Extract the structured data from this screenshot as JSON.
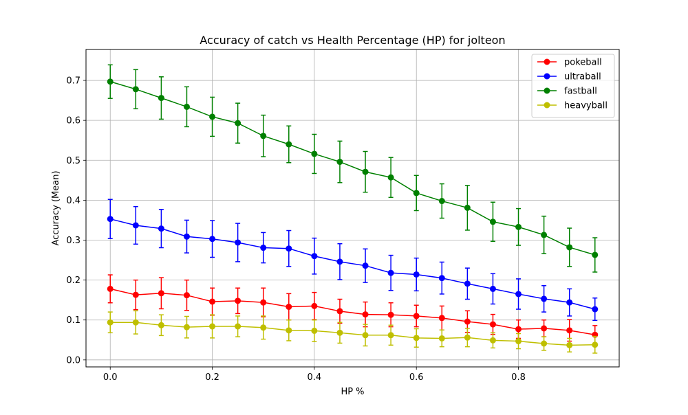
{
  "chart_data": {
    "type": "line",
    "title": "Accuracy of catch vs Health Percentage (HP) for jolteon",
    "xlabel": "HP %",
    "ylabel": "Accuracy (Mean)",
    "xlim": [
      -0.0475,
      0.9975
    ],
    "ylim": [
      -0.0175,
      0.7775
    ],
    "xticks": [
      0.0,
      0.2,
      0.4,
      0.6,
      0.8
    ],
    "xtick_labels": [
      "0.0",
      "0.2",
      "0.4",
      "0.6",
      "0.8"
    ],
    "yticks": [
      0.0,
      0.1,
      0.2,
      0.3,
      0.4,
      0.5,
      0.6,
      0.7
    ],
    "ytick_labels": [
      "0.0",
      "0.1",
      "0.2",
      "0.3",
      "0.4",
      "0.5",
      "0.6",
      "0.7"
    ],
    "grid": true,
    "legend_position": "top-right",
    "error_bars": true,
    "x": [
      0.0,
      0.05,
      0.1,
      0.15,
      0.2,
      0.25,
      0.3,
      0.35,
      0.4,
      0.45,
      0.5,
      0.55,
      0.6,
      0.65,
      0.7,
      0.75,
      0.8,
      0.85,
      0.9,
      0.95
    ],
    "series": [
      {
        "name": "pokeball",
        "color": "#ff0000",
        "values": [
          0.178,
          0.163,
          0.167,
          0.162,
          0.146,
          0.148,
          0.144,
          0.133,
          0.135,
          0.122,
          0.114,
          0.113,
          0.11,
          0.105,
          0.096,
          0.089,
          0.077,
          0.079,
          0.074,
          0.063
        ],
        "errors": [
          0.035,
          0.037,
          0.039,
          0.038,
          0.034,
          0.032,
          0.036,
          0.033,
          0.034,
          0.03,
          0.031,
          0.03,
          0.027,
          0.03,
          0.027,
          0.025,
          0.023,
          0.021,
          0.027,
          0.023
        ]
      },
      {
        "name": "ultraball",
        "color": "#0000ff",
        "values": [
          0.353,
          0.337,
          0.329,
          0.309,
          0.303,
          0.294,
          0.281,
          0.279,
          0.26,
          0.246,
          0.236,
          0.218,
          0.214,
          0.205,
          0.191,
          0.178,
          0.165,
          0.153,
          0.144,
          0.127
        ],
        "errors": [
          0.049,
          0.047,
          0.048,
          0.041,
          0.046,
          0.048,
          0.038,
          0.045,
          0.045,
          0.045,
          0.042,
          0.044,
          0.041,
          0.04,
          0.039,
          0.038,
          0.038,
          0.033,
          0.034,
          0.028
        ]
      },
      {
        "name": "fastball",
        "color": "#008000",
        "values": [
          0.697,
          0.678,
          0.656,
          0.634,
          0.609,
          0.593,
          0.561,
          0.54,
          0.516,
          0.496,
          0.471,
          0.457,
          0.418,
          0.398,
          0.381,
          0.346,
          0.333,
          0.313,
          0.282,
          0.263
        ],
        "errors": [
          0.042,
          0.049,
          0.053,
          0.05,
          0.049,
          0.05,
          0.052,
          0.046,
          0.049,
          0.052,
          0.051,
          0.05,
          0.044,
          0.043,
          0.056,
          0.049,
          0.046,
          0.047,
          0.048,
          0.043
        ]
      },
      {
        "name": "heavyball",
        "color": "#bfbf00",
        "values": [
          0.094,
          0.094,
          0.087,
          0.082,
          0.084,
          0.084,
          0.081,
          0.074,
          0.073,
          0.068,
          0.062,
          0.062,
          0.055,
          0.054,
          0.056,
          0.049,
          0.047,
          0.041,
          0.037,
          0.038
        ],
        "errors": [
          0.026,
          0.029,
          0.026,
          0.027,
          0.029,
          0.026,
          0.029,
          0.026,
          0.027,
          0.026,
          0.027,
          0.025,
          0.023,
          0.021,
          0.023,
          0.019,
          0.019,
          0.017,
          0.017,
          0.021
        ]
      }
    ]
  }
}
